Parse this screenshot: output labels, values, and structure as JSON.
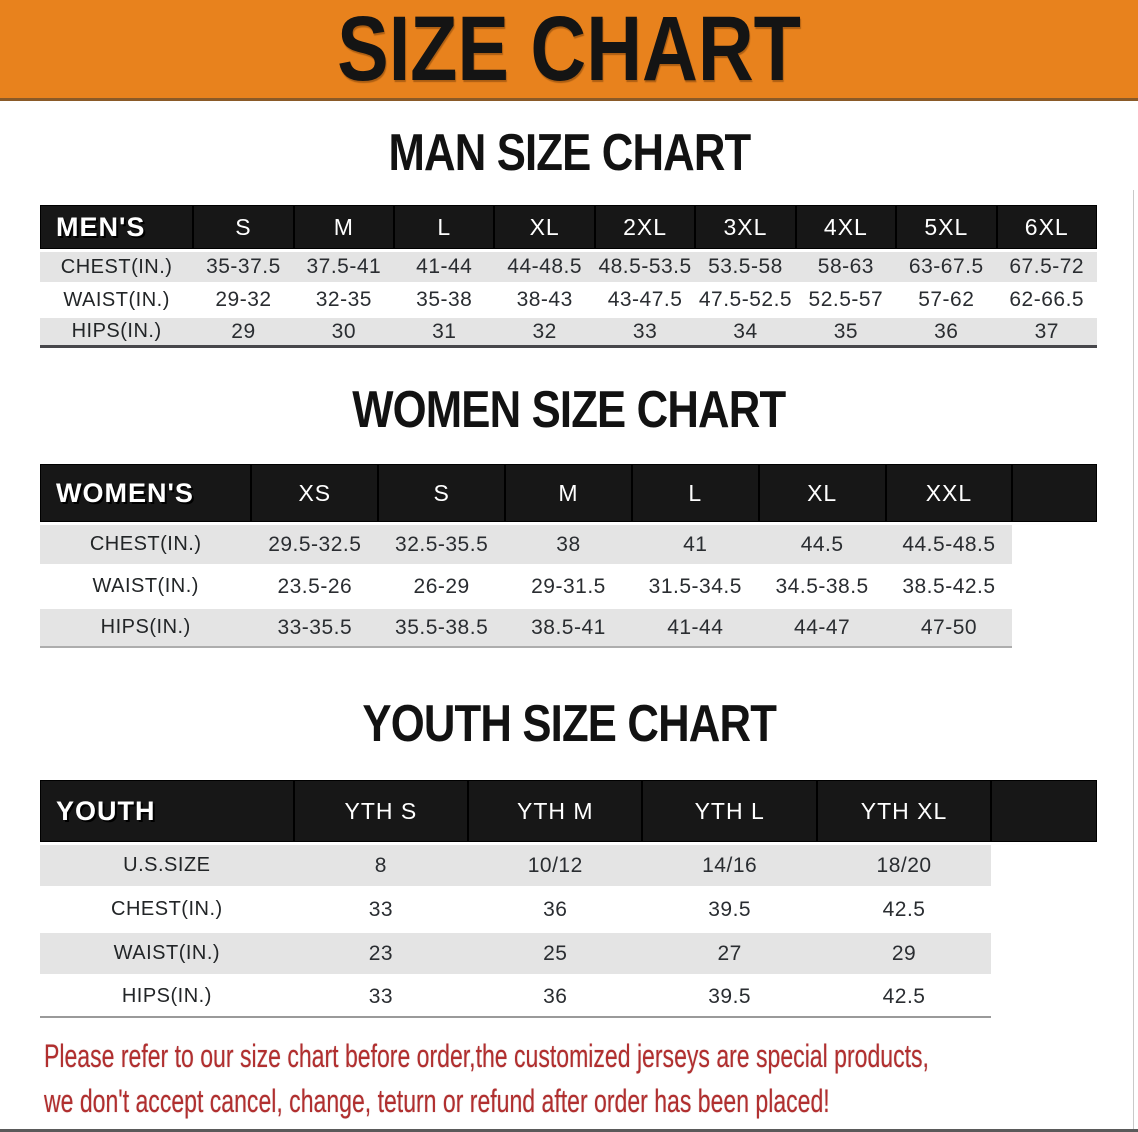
{
  "banner": {
    "title": "SIZE CHART",
    "bg_color": "#E8821D",
    "text_color": "#141414"
  },
  "chart_data": [
    {
      "type": "table",
      "title": "MAN SIZE CHART",
      "corner_label": "MEN'S",
      "columns": [
        "S",
        "M",
        "L",
        "XL",
        "2XL",
        "3XL",
        "4XL",
        "5XL",
        "6XL"
      ],
      "rows": [
        {
          "label": "CHEST(IN.)",
          "values": [
            "35-37.5",
            "37.5-41",
            "41-44",
            "44-48.5",
            "48.5-53.5",
            "53.5-58",
            "58-63",
            "63-67.5",
            "67.5-72"
          ]
        },
        {
          "label": "WAIST(IN.)",
          "values": [
            "29-32",
            "32-35",
            "35-38",
            "38-43",
            "43-47.5",
            "47.5-52.5",
            "52.5-57",
            "57-62",
            "62-66.5"
          ]
        },
        {
          "label": "HIPS(IN.)",
          "values": [
            "29",
            "30",
            "31",
            "32",
            "33",
            "34",
            "35",
            "36",
            "37"
          ]
        }
      ]
    },
    {
      "type": "table",
      "title": "WOMEN SIZE CHART",
      "corner_label": "WOMEN'S",
      "columns": [
        "XS",
        "S",
        "M",
        "L",
        "XL",
        "XXL"
      ],
      "rows": [
        {
          "label": "CHEST(IN.)",
          "values": [
            "29.5-32.5",
            "32.5-35.5",
            "38",
            "41",
            "44.5",
            "44.5-48.5"
          ]
        },
        {
          "label": "WAIST(IN.)",
          "values": [
            "23.5-26",
            "26-29",
            "29-31.5",
            "31.5-34.5",
            "34.5-38.5",
            "38.5-42.5"
          ]
        },
        {
          "label": "HIPS(IN.)",
          "values": [
            "33-35.5",
            "35.5-38.5",
            "38.5-41",
            "41-44",
            "44-47",
            "47-50"
          ]
        }
      ]
    },
    {
      "type": "table",
      "title": "YOUTH SIZE CHART",
      "corner_label": "YOUTH",
      "columns": [
        "YTH S",
        "YTH M",
        "YTH L",
        "YTH XL"
      ],
      "rows": [
        {
          "label": "U.S.SIZE",
          "values": [
            "8",
            "10/12",
            "14/16",
            "18/20"
          ]
        },
        {
          "label": "CHEST(IN.)",
          "values": [
            "33",
            "36",
            "39.5",
            "42.5"
          ]
        },
        {
          "label": "WAIST(IN.)",
          "values": [
            "23",
            "25",
            "27",
            "29"
          ]
        },
        {
          "label": "HIPS(IN.)",
          "values": [
            "33",
            "36",
            "39.5",
            "42.5"
          ]
        }
      ]
    }
  ],
  "disclaimer": {
    "line1": "Please refer to our size chart before order,the customized jerseys are special products,",
    "line2": "we don't accept cancel, change, teturn or refund after order has been placed!",
    "color": "#B12F2F"
  }
}
